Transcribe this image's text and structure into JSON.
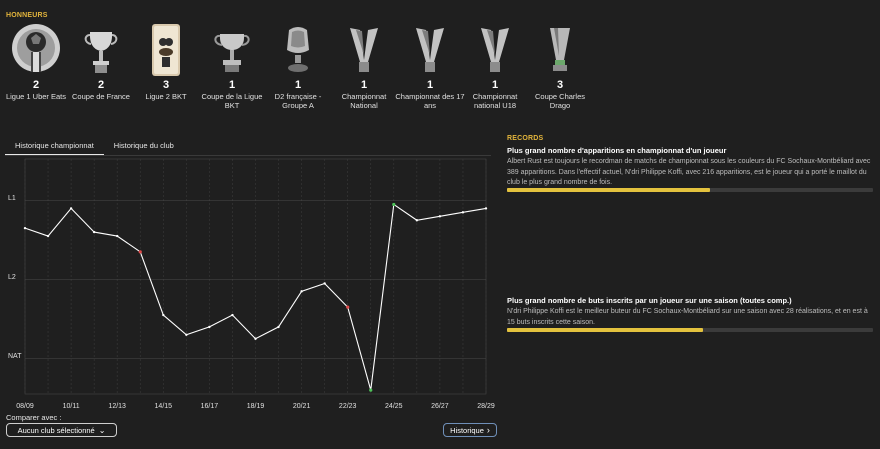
{
  "honours": {
    "title": "HONNEURS",
    "trophies": [
      {
        "count": "2",
        "name": "Ligue 1 Uber Eats",
        "icon": "ligue1-trophy-icon"
      },
      {
        "count": "2",
        "name": "Coupe de France",
        "icon": "coupe-de-france-trophy-icon"
      },
      {
        "count": "3",
        "name": "Ligue 2 BKT",
        "icon": "ligue2-trophy-icon"
      },
      {
        "count": "1",
        "name": "Coupe de la Ligue BKT",
        "icon": "coupe-de-la-ligue-trophy-icon"
      },
      {
        "count": "1",
        "name": "D2 française - Groupe A",
        "icon": "d2-trophy-icon"
      },
      {
        "count": "1",
        "name": "Championnat National",
        "icon": "national-trophy-icon"
      },
      {
        "count": "1",
        "name": "Championnat des 17 ans",
        "icon": "u17-trophy-icon"
      },
      {
        "count": "1",
        "name": "Championnat national U18",
        "icon": "u18-trophy-icon"
      },
      {
        "count": "3",
        "name": "Coupe Charles Drago",
        "icon": "charles-drago-trophy-icon"
      }
    ]
  },
  "tabs": [
    {
      "label": "Historique championnat",
      "active": true
    },
    {
      "label": "Historique du club",
      "active": false
    }
  ],
  "chart_data": {
    "type": "line",
    "title": "",
    "xlabel": "",
    "ylabel": "",
    "y_levels": [
      "L1",
      "L2",
      "NAT"
    ],
    "x_tick_labels": [
      "08/09",
      "10/11",
      "12/13",
      "14/15",
      "16/17",
      "18/19",
      "20/21",
      "22/23",
      "24/25",
      "26/27",
      "28/29"
    ],
    "seasons": [
      "08/09",
      "09/10",
      "10/11",
      "11/12",
      "12/13",
      "13/14",
      "14/15",
      "15/16",
      "16/17",
      "17/18",
      "18/19",
      "19/20",
      "20/21",
      "21/22",
      "22/23",
      "23/24",
      "24/25",
      "25/26",
      "26/27",
      "27/28",
      "28/29"
    ],
    "position_score": [
      1.85,
      1.95,
      1.6,
      1.9,
      1.95,
      2.15,
      2.95,
      3.2,
      3.1,
      2.95,
      3.25,
      3.1,
      2.65,
      2.55,
      2.85,
      3.9,
      1.55,
      1.75,
      1.7,
      1.65,
      1.6
    ],
    "promotion_relegation_markers": [
      {
        "season": "13/14",
        "color": "#e04a4a"
      },
      {
        "season": "22/23",
        "color": "#e04a4a"
      },
      {
        "season": "23/24",
        "color": "#4fc35a"
      },
      {
        "season": "24/25",
        "color": "#4fc35a"
      }
    ],
    "grid": true,
    "line_color": "#ffffff"
  },
  "compare": {
    "label": "Comparer avec :",
    "dropdown_value": "Aucun club sélectionné",
    "history_button": "Historique"
  },
  "records": {
    "title": "RECORDS",
    "items": [
      {
        "title": "Plus grand nombre d'apparitions en championnat d'un joueur",
        "text": "Albert Rust est toujours le recordman de matchs de championnat sous les couleurs du FC Sochaux-Montbéliard avec 389 apparitions. Dans l'effectif actuel, N'dri Philippe Koffi, avec 216 apparitions, est le joueur qui a porté le maillot du club le plus grand nombre de fois.",
        "progress": 0.555
      },
      {
        "title": "Plus grand nombre de buts inscrits par un joueur sur une saison (toutes comp.)",
        "text": "N'dri Philippe Koffi est le meilleur buteur du FC Sochaux-Montbéliard sur une saison avec 28 réalisations, et en est à 15 buts inscrits cette saison.",
        "progress": 0.536
      }
    ]
  },
  "colors": {
    "accent": "#e3b53c",
    "bar_fill": "#e3c23e",
    "background": "#1f1f1f"
  }
}
